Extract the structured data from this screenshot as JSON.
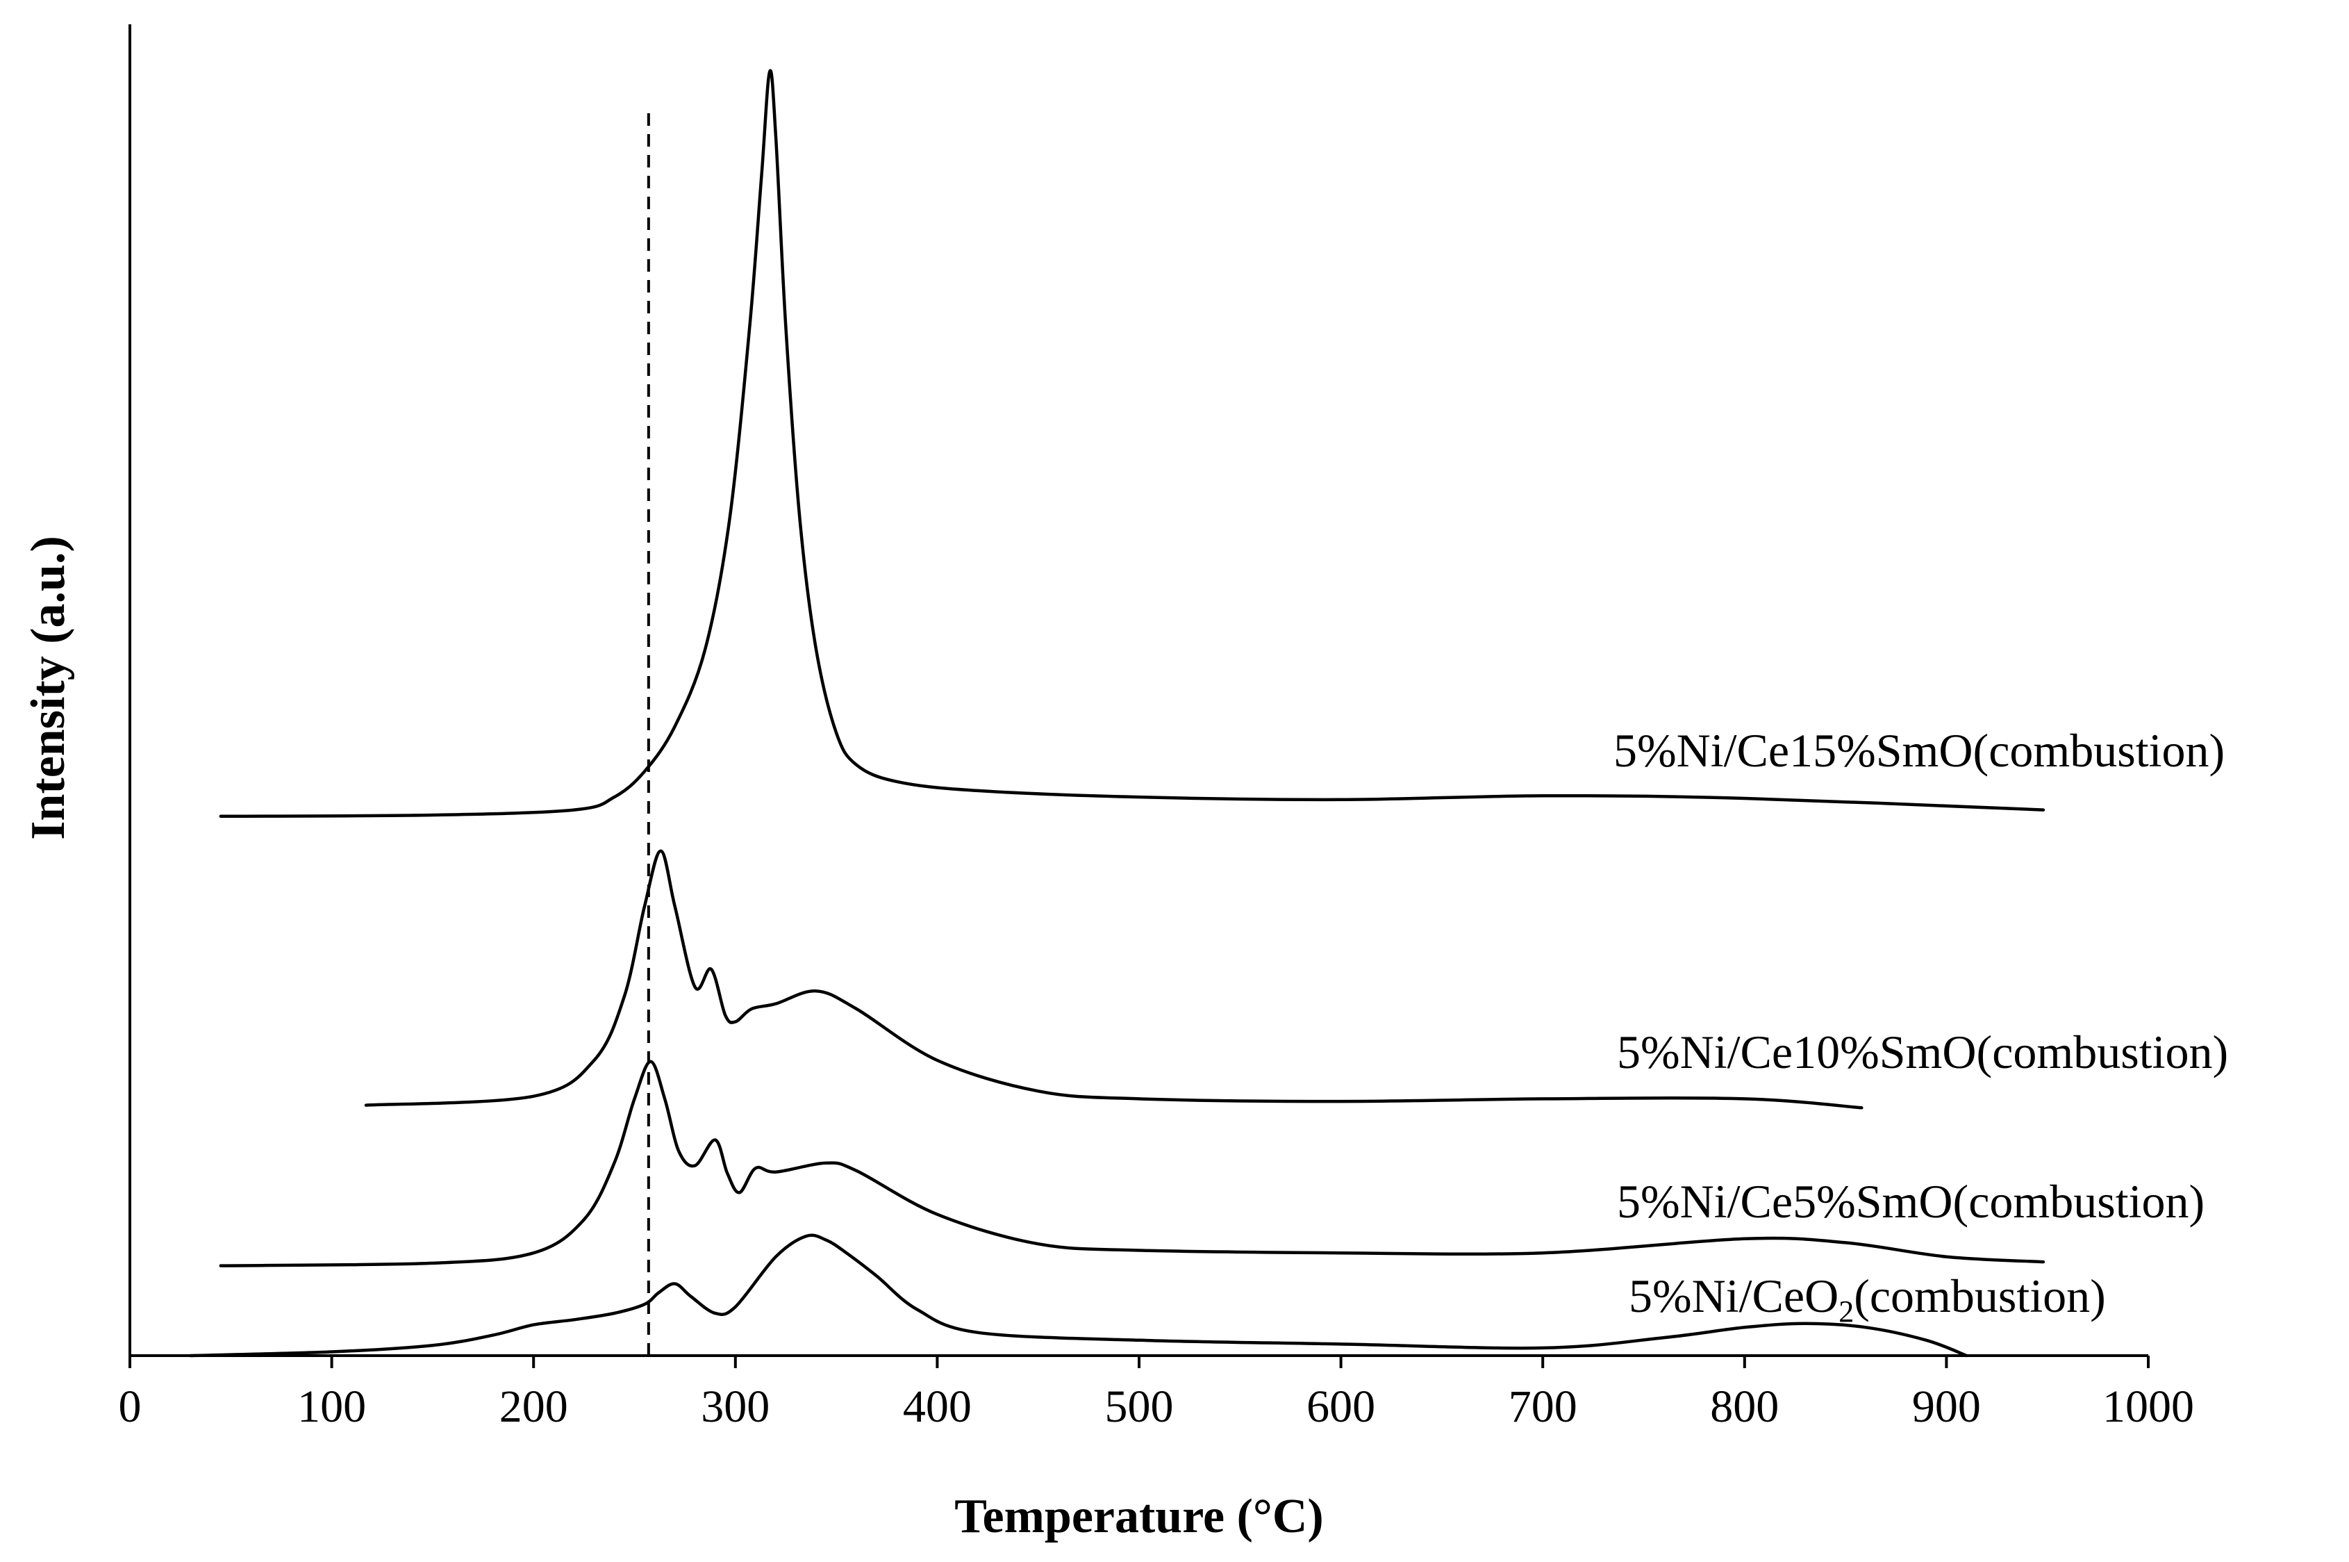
{
  "chart_data": {
    "type": "line",
    "title": "",
    "xlabel": "Temperature (°C)",
    "ylabel": "Intensity (a.u.)",
    "xlim": [
      0,
      1000
    ],
    "ylim": [
      0,
      100
    ],
    "xticks": [
      "0",
      "100",
      "200",
      "300",
      "400",
      "500",
      "600",
      "700",
      "800",
      "900",
      "1000"
    ],
    "yticks": [],
    "grid": false,
    "legend": "inline labels near the right end of each curve",
    "reference_line": {
      "x": 257,
      "style": "dashed"
    },
    "series": [
      {
        "name": "5%Ni/CeO2(combustion)",
        "label": {
          "main": "5%Ni/CeO",
          "sub": "2",
          "tail": "(combustion)"
        },
        "x": [
          30,
          100,
          150,
          180,
          200,
          220,
          240,
          255,
          262,
          270,
          278,
          290,
          300,
          320,
          335,
          345,
          355,
          370,
          390,
          420,
          500,
          600,
          700,
          760,
          800,
          830,
          860,
          890,
          910
        ],
        "y": [
          0,
          0.3,
          0.8,
          1.6,
          2.4,
          2.8,
          3.3,
          4.0,
          4.9,
          5.6,
          4.6,
          3.3,
          3.8,
          7.7,
          9.3,
          9.0,
          8.0,
          6.2,
          3.6,
          1.8,
          1.2,
          0.9,
          0.6,
          1.4,
          2.2,
          2.5,
          2.2,
          1.2,
          0
        ]
      },
      {
        "name": "5%Ni/Ce5%SmO(combustion)",
        "label": {
          "main": "5%Ni/Ce5%SmO",
          "sub": "",
          "tail": "(combustion)"
        },
        "x": [
          45,
          150,
          200,
          225,
          240,
          250,
          258,
          265,
          272,
          280,
          290,
          296,
          302,
          310,
          320,
          345,
          360,
          400,
          450,
          500,
          600,
          700,
          800,
          850,
          900,
          948
        ],
        "y": [
          7.0,
          7.2,
          8.0,
          10.6,
          15.0,
          20.0,
          22.9,
          20.0,
          15.9,
          14.8,
          16.8,
          14.2,
          12.7,
          14.6,
          14.3,
          15.0,
          14.4,
          11.0,
          8.7,
          8.2,
          8.0,
          8.0,
          9.1,
          8.8,
          7.7,
          7.3
        ]
      },
      {
        "name": "5%Ni/Ce10%SmO(combustion)",
        "label": {
          "main": "5%Ni/Ce10%SmO",
          "sub": "",
          "tail": "(combustion)"
        },
        "x": [
          117,
          200,
          230,
          245,
          255,
          263,
          270,
          280,
          288,
          295,
          300,
          308,
          320,
          340,
          360,
          400,
          450,
          500,
          600,
          700,
          800,
          858
        ],
        "y": [
          19.5,
          20.2,
          23.0,
          28.0,
          35.0,
          39.3,
          35.0,
          28.7,
          30.1,
          26.5,
          26.0,
          27.0,
          27.4,
          28.4,
          27.0,
          23.0,
          20.6,
          20.0,
          19.8,
          20.0,
          20.0,
          19.3
        ]
      },
      {
        "name": "5%Ni/Ce15%SmO(combustion)",
        "label": {
          "main": "5%Ni/Ce15%SmO",
          "sub": "",
          "tail": "(combustion)"
        },
        "x": [
          45,
          150,
          220,
          240,
          255,
          270,
          285,
          297,
          307,
          313,
          317,
          320,
          325,
          332,
          340,
          350,
          360,
          380,
          420,
          500,
          600,
          700,
          800,
          948
        ],
        "y": [
          42.0,
          42.1,
          42.5,
          43.5,
          45.5,
          49.0,
          55.0,
          65.0,
          80.0,
          92.0,
          100.0,
          95.0,
          80.0,
          65.0,
          55.0,
          48.5,
          46.0,
          44.7,
          44.0,
          43.5,
          43.3,
          43.6,
          43.4,
          42.5
        ]
      }
    ]
  }
}
